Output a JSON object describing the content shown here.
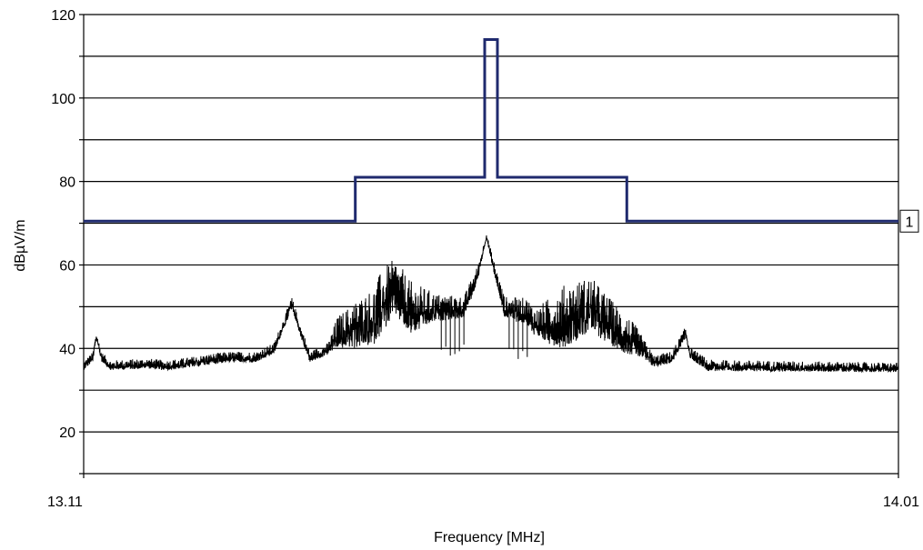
{
  "chart_data": {
    "type": "line",
    "xlabel": "Frequency [MHz]",
    "ylabel": "dBµV/m",
    "xlim": [
      13.11,
      14.01
    ],
    "ylim": [
      10,
      120
    ],
    "y_ticks": [
      20,
      40,
      60,
      80,
      100,
      120
    ],
    "y_tick_labels": [
      "20",
      "40",
      "60",
      "80",
      "100",
      "120"
    ],
    "x_tick_labels": [
      "13.11",
      "14.01"
    ],
    "grid": "horizontal every 10 dBµV/m",
    "colors": {
      "limit": "#1f2a6e",
      "measurement": "#000000",
      "grid": "#000000"
    },
    "series": [
      {
        "role": "limit",
        "step_points": [
          [
            13.11,
            70.5
          ],
          [
            13.41,
            70.5
          ],
          [
            13.41,
            81
          ],
          [
            13.553,
            81
          ],
          [
            13.553,
            114
          ],
          [
            13.567,
            114
          ],
          [
            13.567,
            81
          ],
          [
            13.71,
            81
          ],
          [
            13.71,
            70.5
          ],
          [
            14.01,
            70.5
          ]
        ],
        "end_label": "1"
      },
      {
        "role": "measurement",
        "noise_floor": 36,
        "envelope": [
          [
            13.11,
            36
          ],
          [
            13.12,
            38
          ],
          [
            13.124,
            43
          ],
          [
            13.13,
            38
          ],
          [
            13.14,
            36
          ],
          [
            13.18,
            36.5
          ],
          [
            13.2,
            36
          ],
          [
            13.22,
            36.5
          ],
          [
            13.25,
            37.5
          ],
          [
            13.27,
            38
          ],
          [
            13.3,
            38
          ],
          [
            13.32,
            40
          ],
          [
            13.34,
            51
          ],
          [
            13.35,
            44
          ],
          [
            13.36,
            38
          ],
          [
            13.38,
            40
          ],
          [
            13.39,
            44
          ],
          [
            13.41,
            46
          ],
          [
            13.43,
            48
          ],
          [
            13.44,
            52
          ],
          [
            13.455,
            55
          ],
          [
            13.47,
            50
          ],
          [
            13.5,
            50
          ],
          [
            13.53,
            50
          ],
          [
            13.545,
            58
          ],
          [
            13.555,
            67
          ],
          [
            13.565,
            58
          ],
          [
            13.575,
            50
          ],
          [
            13.6,
            49
          ],
          [
            13.61,
            46
          ],
          [
            13.64,
            48
          ],
          [
            13.67,
            51
          ],
          [
            13.69,
            47
          ],
          [
            13.72,
            42
          ],
          [
            13.74,
            37
          ],
          [
            13.76,
            38
          ],
          [
            13.775,
            44
          ],
          [
            13.78,
            39
          ],
          [
            13.8,
            36
          ],
          [
            14.01,
            35.5
          ]
        ],
        "spread": [
          [
            13.11,
            1.2
          ],
          [
            13.38,
            1.5
          ],
          [
            13.39,
            4
          ],
          [
            13.41,
            6
          ],
          [
            13.44,
            8
          ],
          [
            13.47,
            7
          ],
          [
            13.5,
            3.5
          ],
          [
            13.54,
            2.5
          ],
          [
            13.555,
            0.6
          ],
          [
            13.57,
            2.5
          ],
          [
            13.6,
            3.5
          ],
          [
            13.61,
            4
          ],
          [
            13.64,
            8
          ],
          [
            13.67,
            7
          ],
          [
            13.71,
            5
          ],
          [
            13.74,
            1.5
          ],
          [
            14.01,
            1.2
          ]
        ]
      }
    ]
  }
}
